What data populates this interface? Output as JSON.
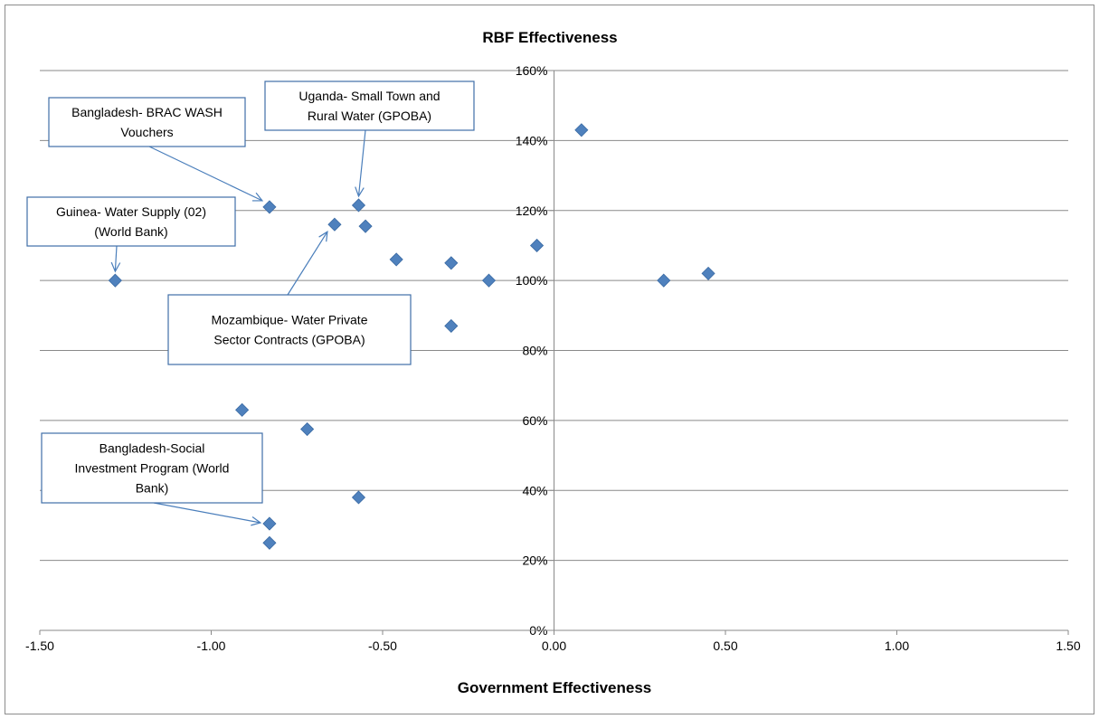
{
  "chart_data": {
    "type": "scatter",
    "title": "RBF Effectiveness",
    "xlabel": "Government Effectiveness",
    "ylabel": "",
    "xlim": [
      -1.5,
      1.5
    ],
    "ylim": [
      0,
      160
    ],
    "x_ticks": [
      "-1.50",
      "-1.00",
      "-0.50",
      "0.00",
      "0.50",
      "1.00",
      "1.50"
    ],
    "y_ticks": [
      "0%",
      "20%",
      "40%",
      "60%",
      "80%",
      "100%",
      "120%",
      "140%",
      "160%"
    ],
    "y_unit": "%",
    "grid": "horizontal",
    "legend": "none",
    "marker_color": "#4f81bd",
    "points": [
      {
        "x": 0.08,
        "y": 143
      },
      {
        "x": -0.83,
        "y": 121
      },
      {
        "x": -0.57,
        "y": 121.5
      },
      {
        "x": -0.64,
        "y": 116
      },
      {
        "x": -0.55,
        "y": 115.5
      },
      {
        "x": -0.05,
        "y": 110
      },
      {
        "x": -0.46,
        "y": 106
      },
      {
        "x": -0.3,
        "y": 105
      },
      {
        "x": -1.28,
        "y": 100
      },
      {
        "x": -0.19,
        "y": 100
      },
      {
        "x": 0.32,
        "y": 100
      },
      {
        "x": 0.45,
        "y": 102
      },
      {
        "x": -0.3,
        "y": 87
      },
      {
        "x": -0.91,
        "y": 63
      },
      {
        "x": -0.72,
        "y": 57.5
      },
      {
        "x": -0.57,
        "y": 38
      },
      {
        "x": -0.83,
        "y": 30.5
      },
      {
        "x": -0.83,
        "y": 25
      }
    ],
    "annotations": [
      {
        "lines": [
          "Bangladesh- BRAC WASH",
          "Vouchers"
        ],
        "target": {
          "x": -0.83,
          "y": 121
        }
      },
      {
        "lines": [
          "Uganda- Small Town and",
          "Rural Water (GPOBA)"
        ],
        "target": {
          "x": -0.57,
          "y": 121.5
        }
      },
      {
        "lines": [
          "Guinea- Water Supply (02)",
          "(World Bank)"
        ],
        "target": {
          "x": -1.28,
          "y": 100
        }
      },
      {
        "lines": [
          "Mozambique- Water Private",
          "Sector Contracts (GPOBA)"
        ],
        "target": {
          "x": -0.64,
          "y": 116
        }
      },
      {
        "lines": [
          "Bangladesh-Social",
          "Investment Program (World",
          "Bank)"
        ],
        "target": {
          "x": -0.83,
          "y": 30.5
        }
      }
    ]
  }
}
